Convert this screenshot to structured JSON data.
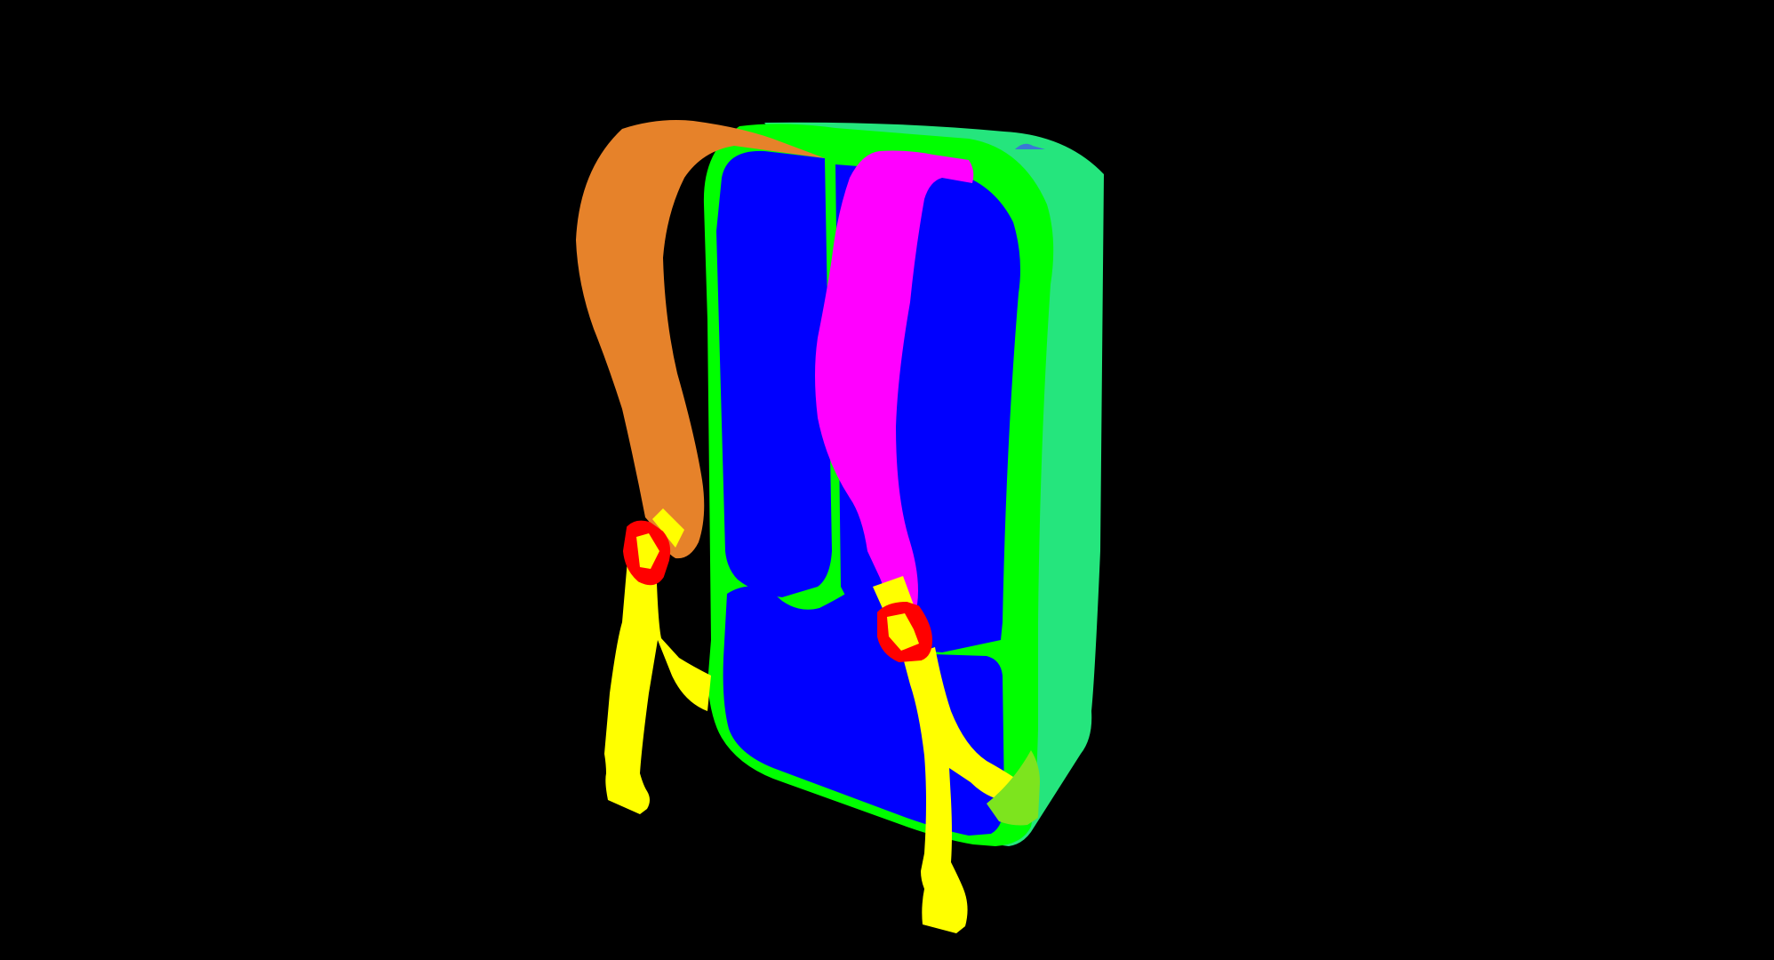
{
  "colors": {
    "background": "#000000",
    "side_panel": "#25e57d",
    "frame_rim": "#00ff00",
    "back_pad": "#0000ff",
    "left_shoulder_strap": "#e6822a",
    "right_shoulder_strap": "#ff00ff",
    "webbing": "#ffff00",
    "buckle": "#ff0000",
    "side_pocket_tab": "#7de41e",
    "top_loop": "#3a78d6"
  },
  "parts": [
    "side-panel",
    "frame-rim",
    "upper-left-back-pad",
    "upper-right-back-pad",
    "lower-back-pad",
    "left-shoulder-strap",
    "right-shoulder-strap",
    "left-webbing-strap",
    "right-webbing-strap",
    "left-buckle",
    "right-buckle",
    "side-pocket-tab",
    "top-loop"
  ]
}
